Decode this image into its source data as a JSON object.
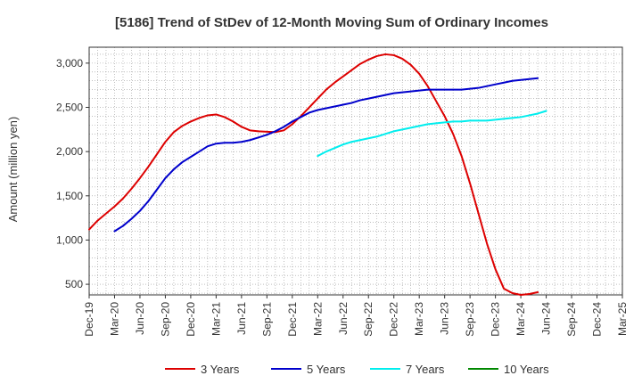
{
  "chart_data": {
    "type": "line",
    "title": "[5186]  Trend of StDev of 12-Month Moving Sum of Ordinary Incomes",
    "ylabel": "Amount (million yen)",
    "xlabel": "",
    "ylim": [
      380,
      3180
    ],
    "yticks": [
      500,
      1000,
      1500,
      2000,
      2500,
      3000
    ],
    "ytick_labels": [
      "500",
      "1,000",
      "1,500",
      "2,000",
      "2,500",
      "3,000"
    ],
    "xticks": [
      "Dec-19",
      "Mar-20",
      "Jun-20",
      "Sep-20",
      "Dec-20",
      "Mar-21",
      "Jun-21",
      "Sep-21",
      "Dec-21",
      "Mar-22",
      "Jun-22",
      "Sep-22",
      "Dec-22",
      "Mar-23",
      "Jun-23",
      "Sep-23",
      "Dec-23",
      "Mar-24",
      "Jun-24",
      "Sep-24",
      "Dec-24",
      "Mar-25"
    ],
    "grid": true,
    "legend_position": "bottom",
    "series": [
      {
        "name": "3 Years",
        "color": "#dd0000",
        "start_index": 0,
        "values": [
          1120,
          1220,
          1300,
          1380,
          1470,
          1580,
          1700,
          1830,
          1970,
          2110,
          2220,
          2290,
          2340,
          2380,
          2410,
          2420,
          2390,
          2340,
          2280,
          2240,
          2230,
          2225,
          2220,
          2240,
          2310,
          2400,
          2500,
          2600,
          2700,
          2780,
          2850,
          2920,
          2990,
          3040,
          3080,
          3100,
          3090,
          3050,
          2980,
          2880,
          2740,
          2570,
          2400,
          2200,
          1950,
          1640,
          1300,
          960,
          670,
          450,
          400,
          380,
          390,
          410
        ]
      },
      {
        "name": "5 Years",
        "color": "#0000cc",
        "start_index": 3,
        "values": [
          1100,
          1160,
          1240,
          1330,
          1440,
          1570,
          1700,
          1800,
          1880,
          1940,
          2000,
          2060,
          2090,
          2100,
          2100,
          2110,
          2130,
          2160,
          2190,
          2230,
          2280,
          2340,
          2390,
          2440,
          2470,
          2490,
          2510,
          2530,
          2550,
          2580,
          2600,
          2620,
          2640,
          2660,
          2670,
          2680,
          2690,
          2700,
          2700,
          2700,
          2700,
          2700,
          2710,
          2720,
          2740,
          2760,
          2780,
          2800,
          2810,
          2820,
          2830
        ]
      },
      {
        "name": "7 Years",
        "color": "#00eeee",
        "start_index": 27,
        "values": [
          1950,
          2000,
          2040,
          2080,
          2110,
          2130,
          2150,
          2170,
          2200,
          2230,
          2250,
          2270,
          2290,
          2310,
          2320,
          2330,
          2340,
          2340,
          2350,
          2350,
          2350,
          2360,
          2370,
          2380,
          2390,
          2410,
          2430,
          2460
        ]
      },
      {
        "name": "10 Years",
        "color": "#008800",
        "start_index": 0,
        "values": []
      }
    ]
  }
}
